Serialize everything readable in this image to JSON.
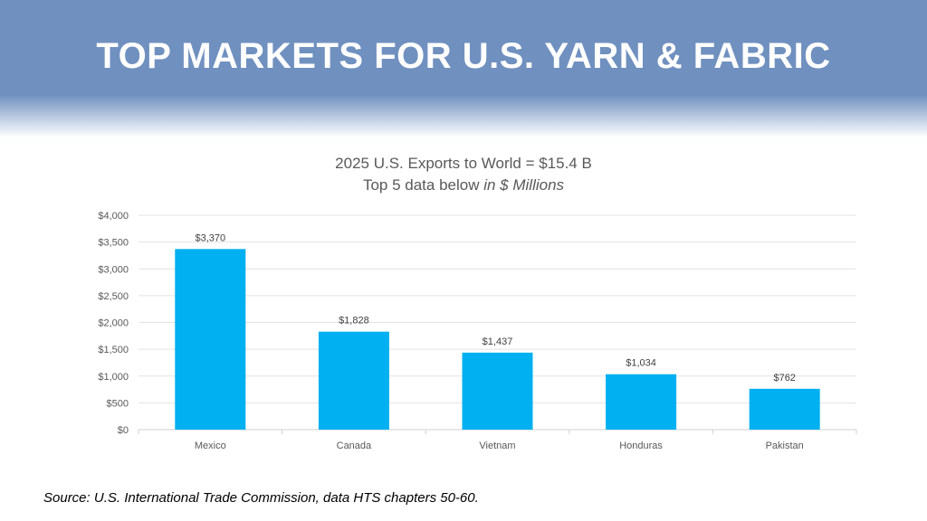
{
  "header": {
    "title": "TOP MARKETS FOR U.S. YARN & FABRIC",
    "color": "#7090bf"
  },
  "chart_data": {
    "type": "bar",
    "title": "2025 U.S. Exports to World = $15.4 B",
    "subtitle_prefix": "Top 5 data below ",
    "subtitle_italic": "in $ Millions",
    "categories": [
      "Mexico",
      "Canada",
      "Vietnam",
      "Honduras",
      "Pakistan"
    ],
    "values": [
      3370,
      1828,
      1437,
      1034,
      762
    ],
    "data_labels": [
      "$3,370",
      "$1,828",
      "$1,437",
      "$1,034",
      "$762"
    ],
    "ylim": [
      0,
      4000
    ],
    "yticks": [
      0,
      500,
      1000,
      1500,
      2000,
      2500,
      3000,
      3500,
      4000
    ],
    "ytick_labels": [
      "$0",
      "$500",
      "$1,000",
      "$1,500",
      "$2,000",
      "$2,500",
      "$3,000",
      "$3,500",
      "$4,000"
    ],
    "xlabel": "",
    "ylabel": "",
    "grid": true,
    "bar_color": "#00b0f0"
  },
  "footer": {
    "source": "Source: U.S. International Trade Commission, data HTS chapters 50-60."
  }
}
